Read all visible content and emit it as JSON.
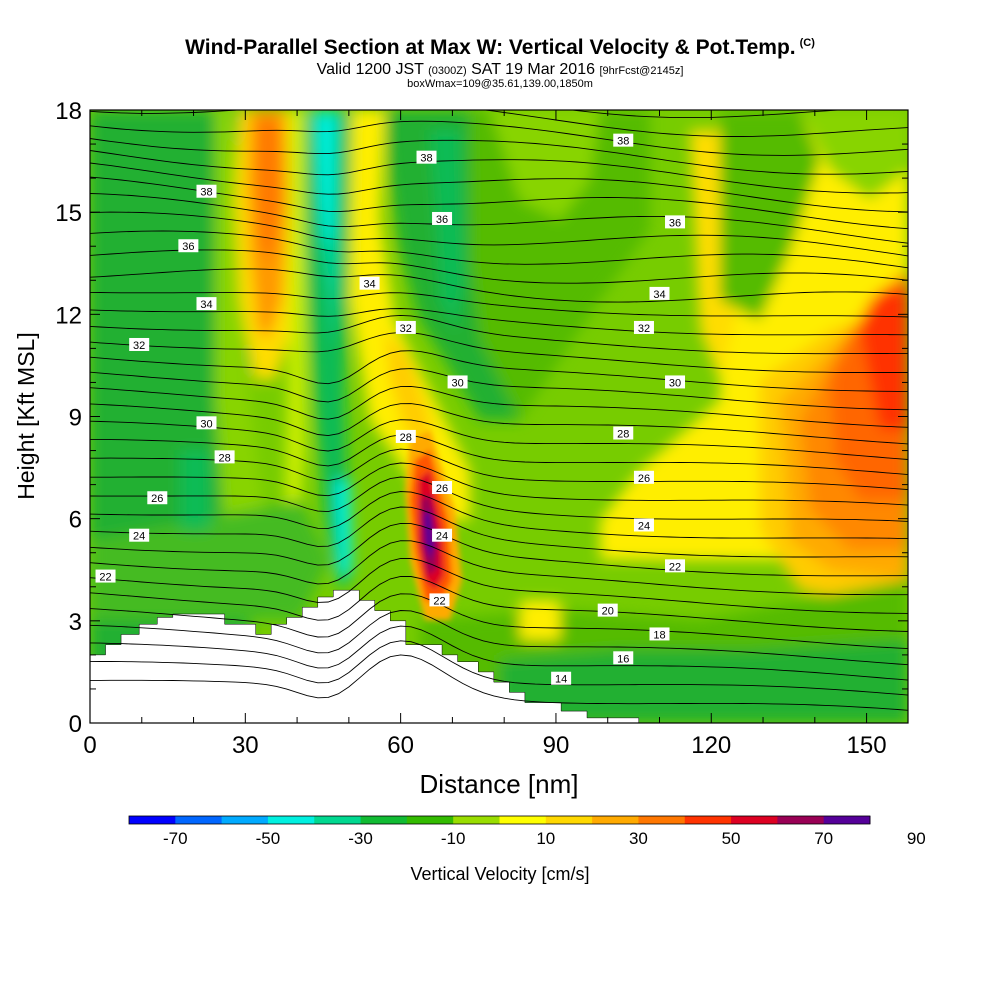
{
  "header": {
    "title": "Wind-Parallel Section at Max W: Vertical Velocity & Pot.Temp.",
    "title_mark": "(C)",
    "valid_prefix": "Valid 1200 JST",
    "valid_z": "(0300Z)",
    "valid_date": "SAT 19 Mar 2016",
    "forecast": "[9hrFcst@2145z]",
    "box_info": "boxWmax=109@35.61,139.00,1850m"
  },
  "chart_data": {
    "type": "heatmap",
    "xlabel": "Distance [nm]",
    "ylabel": "Height [Kft MSL]",
    "xlim": [
      0,
      158
    ],
    "ylim": [
      0,
      18
    ],
    "x_ticks": [
      0,
      30,
      60,
      90,
      120,
      150
    ],
    "y_ticks": [
      0,
      3,
      6,
      9,
      12,
      15,
      18
    ],
    "colorbar": {
      "label": "Vertical Velocity [cm/s]",
      "tick_labels": [
        "-70",
        "-50",
        "-30",
        "-10",
        "10",
        "30",
        "50",
        "70",
        "90"
      ],
      "colors": [
        "#0000ff",
        "#0066ff",
        "#00aaff",
        "#00f0e0",
        "#00d890",
        "#11bb33",
        "#33bb00",
        "#99dd00",
        "#ffff00",
        "#ffd800",
        "#ffaa00",
        "#ff7700",
        "#ff3300",
        "#dd0022",
        "#990055",
        "#550099"
      ]
    },
    "contour_labels": [
      {
        "text": "38",
        "x": 22.5,
        "y": 15.6
      },
      {
        "text": "36",
        "x": 19,
        "y": 14.0
      },
      {
        "text": "34",
        "x": 22.5,
        "y": 12.3
      },
      {
        "text": "32",
        "x": 9.5,
        "y": 11.1
      },
      {
        "text": "30",
        "x": 22.5,
        "y": 8.8
      },
      {
        "text": "28",
        "x": 26,
        "y": 7.8
      },
      {
        "text": "26",
        "x": 13,
        "y": 6.6
      },
      {
        "text": "24",
        "x": 9.5,
        "y": 5.5
      },
      {
        "text": "22",
        "x": 3,
        "y": 4.3
      },
      {
        "text": "38",
        "x": 65,
        "y": 16.6
      },
      {
        "text": "36",
        "x": 68,
        "y": 14.8
      },
      {
        "text": "34",
        "x": 54,
        "y": 12.9
      },
      {
        "text": "32",
        "x": 61,
        "y": 11.6
      },
      {
        "text": "30",
        "x": 71,
        "y": 10.0
      },
      {
        "text": "28",
        "x": 61,
        "y": 8.4
      },
      {
        "text": "26",
        "x": 68,
        "y": 6.9
      },
      {
        "text": "24",
        "x": 68,
        "y": 5.5
      },
      {
        "text": "22",
        "x": 67.5,
        "y": 3.6
      },
      {
        "text": "38",
        "x": 103,
        "y": 17.1
      },
      {
        "text": "36",
        "x": 113,
        "y": 14.7
      },
      {
        "text": "34",
        "x": 110,
        "y": 12.6
      },
      {
        "text": "32",
        "x": 107,
        "y": 11.6
      },
      {
        "text": "30",
        "x": 113,
        "y": 10.0
      },
      {
        "text": "28",
        "x": 103,
        "y": 8.5
      },
      {
        "text": "26",
        "x": 107,
        "y": 7.2
      },
      {
        "text": "24",
        "x": 107,
        "y": 5.8
      },
      {
        "text": "22",
        "x": 113,
        "y": 4.6
      },
      {
        "text": "20",
        "x": 100,
        "y": 3.3
      },
      {
        "text": "18",
        "x": 110,
        "y": 2.6
      },
      {
        "text": "16",
        "x": 103,
        "y": 1.9
      },
      {
        "text": "14",
        "x": 91,
        "y": 1.3
      }
    ],
    "terrain": [
      [
        0,
        2
      ],
      [
        3,
        2
      ],
      [
        3,
        2.3
      ],
      [
        6,
        2.3
      ],
      [
        6,
        2.6
      ],
      [
        9.5,
        2.6
      ],
      [
        9.5,
        2.9
      ],
      [
        13,
        2.9
      ],
      [
        13,
        3.1
      ],
      [
        16,
        3.1
      ],
      [
        16,
        3.2
      ],
      [
        26,
        3.2
      ],
      [
        26,
        2.9
      ],
      [
        32,
        2.9
      ],
      [
        32,
        2.6
      ],
      [
        35,
        2.6
      ],
      [
        35,
        2.9
      ],
      [
        38,
        2.9
      ],
      [
        38,
        3.1
      ],
      [
        41,
        3.1
      ],
      [
        41,
        3.4
      ],
      [
        44,
        3.4
      ],
      [
        44,
        3.7
      ],
      [
        47,
        3.7
      ],
      [
        47,
        3.9
      ],
      [
        52,
        3.9
      ],
      [
        52,
        3.6
      ],
      [
        55,
        3.6
      ],
      [
        55,
        3.3
      ],
      [
        58,
        3.3
      ],
      [
        58,
        3.0
      ],
      [
        61,
        3.0
      ],
      [
        61,
        2.3
      ],
      [
        68,
        2.3
      ],
      [
        68,
        2.0
      ],
      [
        71,
        2.0
      ],
      [
        71,
        1.8
      ],
      [
        75,
        1.8
      ],
      [
        75,
        1.5
      ],
      [
        78,
        1.5
      ],
      [
        78,
        1.2
      ],
      [
        81,
        1.2
      ],
      [
        81,
        0.9
      ],
      [
        84,
        0.9
      ],
      [
        84,
        0.6
      ],
      [
        91,
        0.6
      ],
      [
        91,
        0.35
      ],
      [
        96,
        0.35
      ],
      [
        96,
        0.15
      ],
      [
        106,
        0.15
      ],
      [
        106,
        0
      ],
      [
        158,
        0
      ]
    ]
  }
}
